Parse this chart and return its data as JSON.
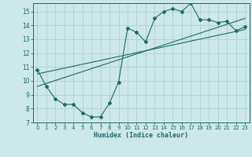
{
  "title": "",
  "xlabel": "Humidex (Indice chaleur)",
  "ylabel": "",
  "xlim": [
    -0.5,
    23.5
  ],
  "ylim": [
    7,
    15.6
  ],
  "yticks": [
    7,
    8,
    9,
    10,
    11,
    12,
    13,
    14,
    15
  ],
  "xticks": [
    0,
    1,
    2,
    3,
    4,
    5,
    6,
    7,
    8,
    9,
    10,
    11,
    12,
    13,
    14,
    15,
    16,
    17,
    18,
    19,
    20,
    21,
    22,
    23
  ],
  "bg_color": "#cce8e8",
  "grid_color": "#b0d0d0",
  "line_color": "#1a6b6b",
  "curve_x": [
    0,
    1,
    2,
    3,
    4,
    5,
    6,
    7,
    8,
    9,
    10,
    11,
    12,
    13,
    14,
    15,
    16,
    17,
    18,
    19,
    20,
    21,
    22,
    23
  ],
  "curve_y": [
    10.8,
    9.6,
    8.7,
    8.3,
    8.3,
    7.7,
    7.4,
    7.4,
    8.4,
    9.9,
    13.8,
    13.5,
    12.8,
    14.5,
    15.0,
    15.2,
    15.0,
    15.6,
    14.4,
    14.4,
    14.2,
    14.3,
    13.6,
    13.9
  ],
  "line1_x": [
    0,
    23
  ],
  "line1_y": [
    9.6,
    14.5
  ],
  "line2_x": [
    0,
    23
  ],
  "line2_y": [
    10.5,
    13.7
  ]
}
